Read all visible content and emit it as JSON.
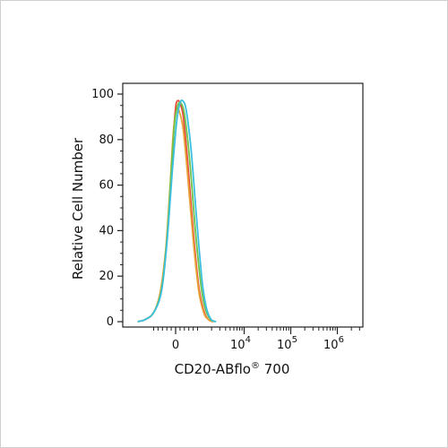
{
  "chart_data": {
    "type": "line",
    "xlabel_main": "CD20-ABflo",
    "xlabel_reg": "®",
    "xlabel_tail": " 700",
    "ylabel": "Relative Cell Number",
    "ylim": [
      0,
      100
    ],
    "y_ticks": [
      0,
      20,
      40,
      60,
      80,
      100
    ],
    "x_ticks": [
      {
        "value": 0,
        "base": "0",
        "exp": ""
      },
      {
        "value": 10000,
        "base": "10",
        "exp": "4"
      },
      {
        "value": 100000,
        "base": "10",
        "exp": "5"
      },
      {
        "value": 1000000,
        "base": "10",
        "exp": "6"
      }
    ],
    "series": [
      {
        "color": "#e8483a",
        "points": [
          [
            -2200,
            0
          ],
          [
            -1500,
            1
          ],
          [
            -1000,
            4
          ],
          [
            -700,
            12
          ],
          [
            -450,
            30
          ],
          [
            -250,
            58
          ],
          [
            -100,
            82
          ],
          [
            0,
            94
          ],
          [
            80,
            97
          ],
          [
            200,
            96
          ],
          [
            350,
            90
          ],
          [
            550,
            70
          ],
          [
            800,
            40
          ],
          [
            1050,
            16
          ],
          [
            1350,
            5
          ],
          [
            1700,
            1
          ],
          [
            2200,
            0
          ]
        ]
      },
      {
        "color": "#e8a23a",
        "points": [
          [
            -2200,
            0
          ],
          [
            -1500,
            1
          ],
          [
            -1000,
            4
          ],
          [
            -700,
            13
          ],
          [
            -450,
            32
          ],
          [
            -250,
            60
          ],
          [
            -100,
            84
          ],
          [
            50,
            93
          ],
          [
            180,
            92
          ],
          [
            350,
            84
          ],
          [
            550,
            64
          ],
          [
            800,
            36
          ],
          [
            1050,
            14
          ],
          [
            1350,
            4
          ],
          [
            1700,
            1
          ],
          [
            2200,
            0
          ]
        ]
      },
      {
        "color": "#6dc24b",
        "points": [
          [
            -2200,
            0
          ],
          [
            -1500,
            1
          ],
          [
            -1000,
            4
          ],
          [
            -650,
            14
          ],
          [
            -400,
            36
          ],
          [
            -200,
            66
          ],
          [
            -50,
            87
          ],
          [
            100,
            95
          ],
          [
            250,
            96
          ],
          [
            420,
            90
          ],
          [
            650,
            70
          ],
          [
            900,
            40
          ],
          [
            1200,
            15
          ],
          [
            1500,
            5
          ],
          [
            1900,
            1
          ],
          [
            2400,
            0
          ]
        ]
      },
      {
        "color": "#3bbfe0",
        "points": [
          [
            -2200,
            0
          ],
          [
            -1500,
            1
          ],
          [
            -1000,
            4
          ],
          [
            -650,
            13
          ],
          [
            -400,
            34
          ],
          [
            -150,
            66
          ],
          [
            50,
            88
          ],
          [
            200,
            96
          ],
          [
            330,
            97
          ],
          [
            480,
            93
          ],
          [
            700,
            76
          ],
          [
            950,
            46
          ],
          [
            1250,
            18
          ],
          [
            1550,
            6
          ],
          [
            1950,
            1
          ],
          [
            2500,
            0
          ]
        ]
      }
    ]
  }
}
